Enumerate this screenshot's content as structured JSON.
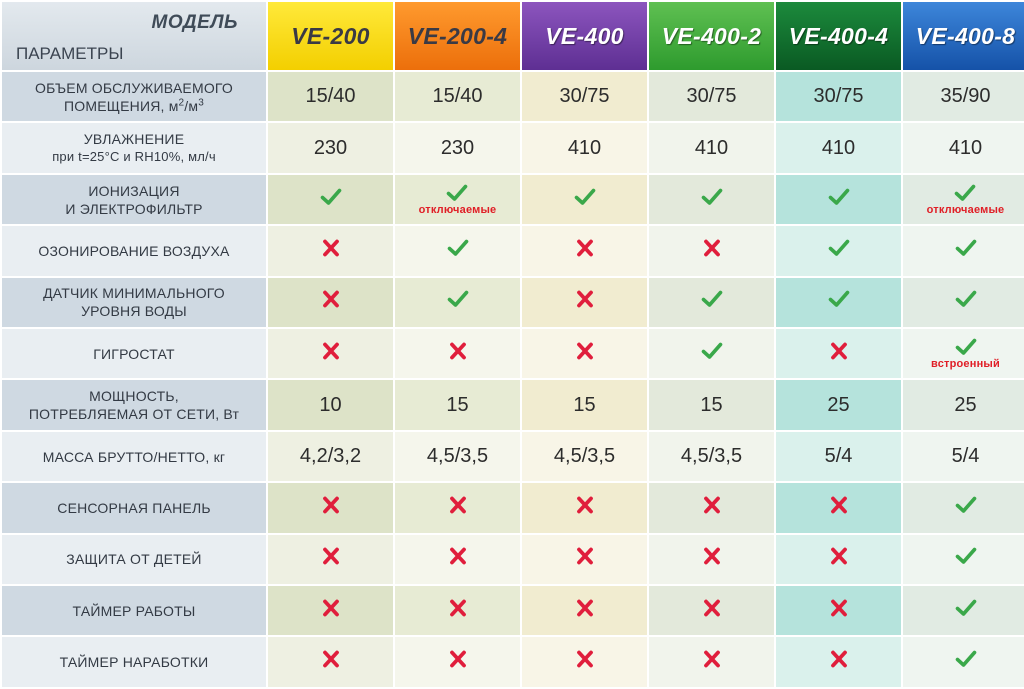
{
  "header": {
    "model_label": "МОДЕЛЬ",
    "params_label": "ПАРАМЕТРЫ",
    "models": [
      "VE-200",
      "VE-200-4",
      "VE-400",
      "VE-400-2",
      "VE-400-4",
      "VE-400-8"
    ]
  },
  "colors": {
    "check": "#3aa84a",
    "cross": "#e01e3c",
    "note": "#e01e26"
  },
  "rows": [
    {
      "param": "ОБЪЕМ ОБСЛУЖИВАЕМОГО",
      "param_line2_pre": "ПОМЕЩЕНИЯ, м",
      "param_sup1": "2",
      "param_mid": "/м",
      "param_sup2": "3",
      "cells": [
        {
          "value": "15/40"
        },
        {
          "value": "15/40"
        },
        {
          "value": "30/75"
        },
        {
          "value": "30/75"
        },
        {
          "value": "30/75"
        },
        {
          "value": "35/90"
        }
      ]
    },
    {
      "param": "УВЛАЖНЕНИЕ",
      "param_line2": "при t=25°C и RH10%, мл/ч",
      "small_second": true,
      "cells": [
        {
          "value": "230"
        },
        {
          "value": "230"
        },
        {
          "value": "410"
        },
        {
          "value": "410"
        },
        {
          "value": "410"
        },
        {
          "value": "410"
        }
      ]
    },
    {
      "param": "ИОНИЗАЦИЯ",
      "param_line2": "И ЭЛЕКТРОФИЛЬТР",
      "cells": [
        {
          "icon": "check-icon"
        },
        {
          "icon": "check-icon",
          "note": "отключаемые"
        },
        {
          "icon": "check-icon"
        },
        {
          "icon": "check-icon"
        },
        {
          "icon": "check-icon"
        },
        {
          "icon": "check-icon",
          "note": "отключаемые"
        }
      ]
    },
    {
      "param": "ОЗОНИРОВАНИЕ ВОЗДУХА",
      "cells": [
        {
          "icon": "cross-icon"
        },
        {
          "icon": "check-icon"
        },
        {
          "icon": "cross-icon"
        },
        {
          "icon": "cross-icon"
        },
        {
          "icon": "check-icon"
        },
        {
          "icon": "check-icon"
        }
      ]
    },
    {
      "param": "ДАТЧИК МИНИМАЛЬНОГО",
      "param_line2": "УРОВНЯ ВОДЫ",
      "cells": [
        {
          "icon": "cross-icon"
        },
        {
          "icon": "check-icon"
        },
        {
          "icon": "cross-icon"
        },
        {
          "icon": "check-icon"
        },
        {
          "icon": "check-icon"
        },
        {
          "icon": "check-icon"
        }
      ]
    },
    {
      "param": "ГИГРОСТАТ",
      "cells": [
        {
          "icon": "cross-icon"
        },
        {
          "icon": "cross-icon"
        },
        {
          "icon": "cross-icon"
        },
        {
          "icon": "check-icon"
        },
        {
          "icon": "cross-icon"
        },
        {
          "icon": "check-icon",
          "note": "встроенный"
        }
      ]
    },
    {
      "param": "МОЩНОСТЬ,",
      "param_line2": "ПОТРЕБЛЯЕМАЯ ОТ СЕТИ, Вт",
      "cells": [
        {
          "value": "10"
        },
        {
          "value": "15"
        },
        {
          "value": "15"
        },
        {
          "value": "15"
        },
        {
          "value": "25"
        },
        {
          "value": "25"
        }
      ]
    },
    {
      "param": "МАССА БРУТТО/НЕТТО, кг",
      "cells": [
        {
          "value": "4,2/3,2"
        },
        {
          "value": "4,5/3,5"
        },
        {
          "value": "4,5/3,5"
        },
        {
          "value": "4,5/3,5"
        },
        {
          "value": "5/4"
        },
        {
          "value": "5/4"
        }
      ]
    },
    {
      "param": "СЕНСОРНАЯ ПАНЕЛЬ",
      "cells": [
        {
          "icon": "cross-icon"
        },
        {
          "icon": "cross-icon"
        },
        {
          "icon": "cross-icon"
        },
        {
          "icon": "cross-icon"
        },
        {
          "icon": "cross-icon"
        },
        {
          "icon": "check-icon"
        }
      ]
    },
    {
      "param": "ЗАЩИТА ОТ ДЕТЕЙ",
      "cells": [
        {
          "icon": "cross-icon"
        },
        {
          "icon": "cross-icon"
        },
        {
          "icon": "cross-icon"
        },
        {
          "icon": "cross-icon"
        },
        {
          "icon": "cross-icon"
        },
        {
          "icon": "check-icon"
        }
      ]
    },
    {
      "param": "ТАЙМЕР РАБОТЫ",
      "cells": [
        {
          "icon": "cross-icon"
        },
        {
          "icon": "cross-icon"
        },
        {
          "icon": "cross-icon"
        },
        {
          "icon": "cross-icon"
        },
        {
          "icon": "cross-icon"
        },
        {
          "icon": "check-icon"
        }
      ]
    },
    {
      "param": "ТАЙМЕР НАРАБОТКИ",
      "cells": [
        {
          "icon": "cross-icon"
        },
        {
          "icon": "cross-icon"
        },
        {
          "icon": "cross-icon"
        },
        {
          "icon": "cross-icon"
        },
        {
          "icon": "cross-icon"
        },
        {
          "icon": "check-icon"
        }
      ]
    }
  ]
}
